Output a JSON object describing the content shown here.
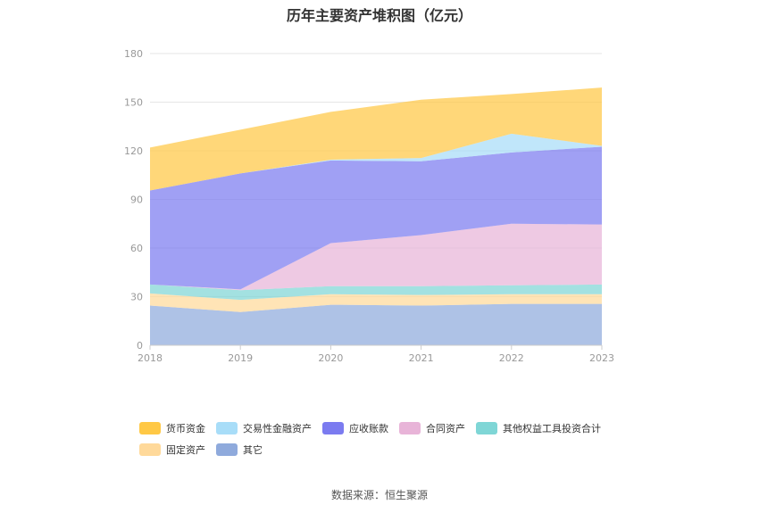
{
  "chart_data": {
    "type": "area",
    "stacked": true,
    "title": "历年主要资产堆积图（亿元）",
    "x": [
      "2018",
      "2019",
      "2020",
      "2021",
      "2022",
      "2023"
    ],
    "ylim": [
      0,
      180
    ],
    "yticks": [
      0,
      30,
      60,
      90,
      120,
      150,
      180
    ],
    "grid": true,
    "legend_position": "bottom",
    "series": [
      {
        "name": "其它",
        "color": "#8FAADC",
        "values": [
          24.5,
          20.5,
          25.0,
          24.5,
          25.5,
          25.5
        ]
      },
      {
        "name": "固定资产",
        "color": "#FFD99A",
        "values": [
          7.5,
          7.5,
          6.5,
          6.5,
          6.0,
          6.0
        ]
      },
      {
        "name": "其他权益工具投资合计",
        "color": "#7FD6D6",
        "values": [
          5.5,
          6.0,
          5.0,
          5.5,
          5.5,
          6.0
        ]
      },
      {
        "name": "合同资产",
        "color": "#E8B4D8",
        "values": [
          0.0,
          0.5,
          26.5,
          31.5,
          38.0,
          37.0
        ]
      },
      {
        "name": "应收账款",
        "color": "#7B7BF0",
        "values": [
          58.0,
          71.5,
          51.0,
          45.5,
          44.0,
          48.0
        ]
      },
      {
        "name": "交易性金融资产",
        "color": "#A8DDF8",
        "values": [
          0.0,
          0.0,
          0.5,
          2.0,
          11.5,
          0.5
        ]
      },
      {
        "name": "货币资金",
        "color": "#FFC845",
        "values": [
          26.5,
          27.0,
          29.5,
          36.0,
          24.5,
          36.0
        ]
      }
    ]
  },
  "legend": {
    "items": [
      {
        "label": "货币资金",
        "color": "#FFC845"
      },
      {
        "label": "交易性金融资产",
        "color": "#A8DDF8"
      },
      {
        "label": "应收账款",
        "color": "#7B7BF0"
      },
      {
        "label": "合同资产",
        "color": "#E8B4D8"
      },
      {
        "label": "其他权益工具投资合计",
        "color": "#7FD6D6"
      },
      {
        "label": "固定资产",
        "color": "#FFD99A"
      },
      {
        "label": "其它",
        "color": "#8FAADC"
      }
    ]
  },
  "source": "数据来源：恒生聚源"
}
